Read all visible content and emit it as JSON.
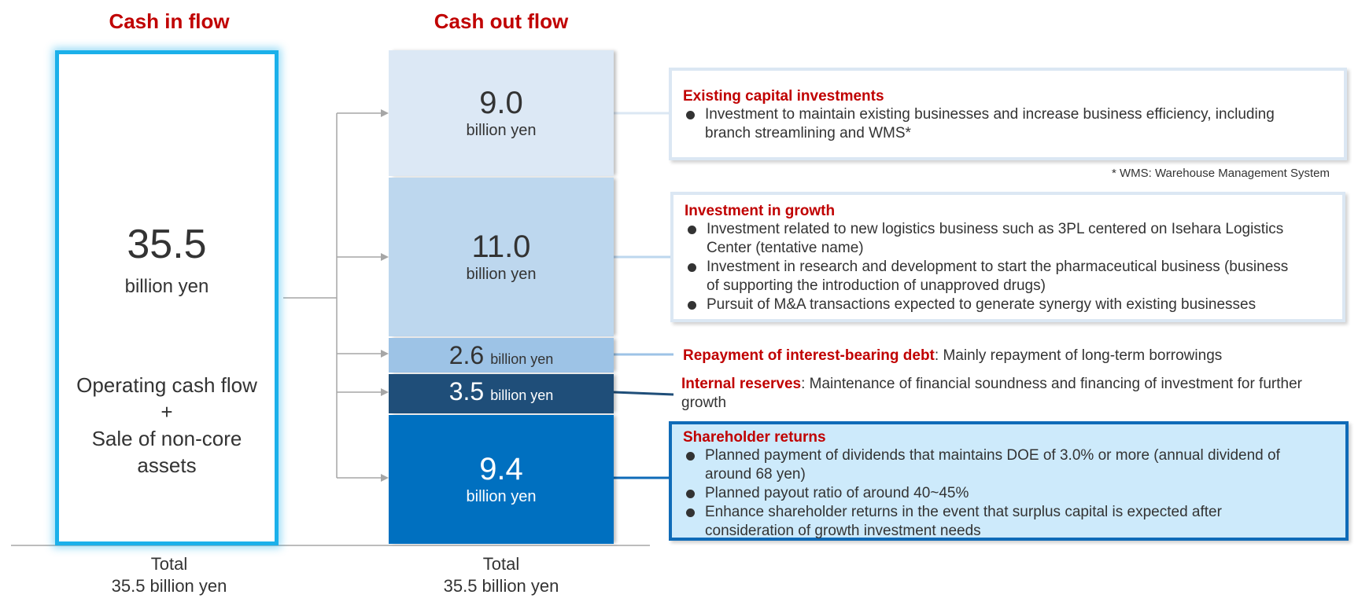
{
  "inflow": {
    "title": "Cash in flow",
    "amount": "35.5",
    "unit": "billion yen",
    "source_line1": "Operating cash flow",
    "source_plus": "+",
    "source_line2": "Sale of non-core",
    "source_line3": "assets",
    "total_label": "Total",
    "total_value": "35.5 billion yen"
  },
  "outflow": {
    "title": "Cash out flow",
    "total_label": "Total",
    "total_value": "35.5 billion yen",
    "segments": [
      {
        "value": "9.0",
        "unit": "billion yen",
        "color": "#dce8f5"
      },
      {
        "value": "11.0",
        "unit": "billion yen",
        "color": "#bdd7ee"
      },
      {
        "value": "2.6",
        "unit": "billion yen",
        "color": "#9dc3e6"
      },
      {
        "value": "3.5",
        "unit": "billion yen",
        "color": "#1f4e79"
      },
      {
        "value": "9.4",
        "unit": "billion yen",
        "color": "#0070c0"
      }
    ]
  },
  "callouts": {
    "existing": {
      "title": "Existing capital investments",
      "items": [
        {
          "line1": "Investment to maintain existing businesses and increase business efficiency, including",
          "line2": "branch streamlining and WMS*"
        }
      ],
      "footnote": "* WMS: Warehouse Management System"
    },
    "growth": {
      "title": "Investment in growth",
      "items": [
        {
          "line1": "Investment related to new logistics business such as 3PL centered on Isehara Logistics",
          "line2": "Center (tentative name)"
        },
        {
          "line1": "Investment in research and development to start the pharmaceutical business (business",
          "line2": "of supporting the introduction of unapproved drugs)"
        },
        {
          "line1": "Pursuit of M&A transactions expected to generate synergy with existing businesses",
          "line2": ""
        }
      ]
    },
    "debt": {
      "title": "Repayment of interest-bearing debt",
      "text": ": Mainly repayment of long-term borrowings"
    },
    "reserves": {
      "title": "Internal reserves",
      "text_line1": ": Maintenance of financial soundness and financing of investment for further",
      "text_line2": "growth"
    },
    "shareholder": {
      "title": "Shareholder returns",
      "items": [
        {
          "line1": "Planned payment of dividends that maintains DOE of 3.0% or more (annual dividend of",
          "line2": "around 68 yen)"
        },
        {
          "line1": "Planned payout ratio of around 40~45%",
          "line2": ""
        },
        {
          "line1": "Enhance shareholder returns in the event that surplus capital is expected after",
          "line2": "consideration of growth investment needs"
        }
      ]
    }
  },
  "colors": {
    "accent_red": "#c00000",
    "inflow_border": "#1bb0ea",
    "connector_gray": "#a6a6a6",
    "shareholder_bg": "#cdeafb",
    "shareholder_border": "#0f6bb8"
  }
}
